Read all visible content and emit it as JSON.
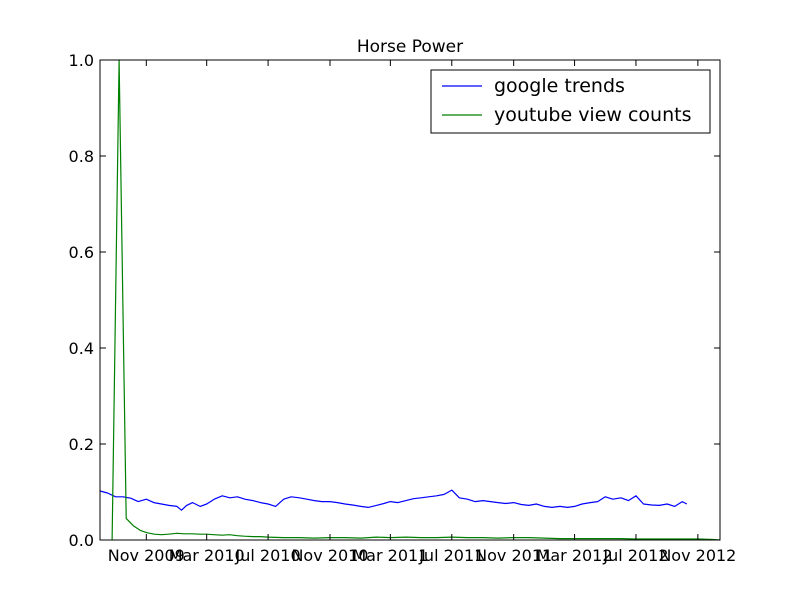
{
  "chart_data": {
    "type": "line",
    "title": "Horse Power",
    "xlabel": "",
    "ylabel": "",
    "xlim": [
      "2009-08-01",
      "2012-12-15"
    ],
    "ylim": [
      0,
      1.0
    ],
    "y_ticks": [
      "0.0",
      "0.2",
      "0.4",
      "0.6",
      "0.8",
      "1.0"
    ],
    "x_ticks": [
      {
        "date": "2009-11-01",
        "label": "Nov 2009"
      },
      {
        "date": "2010-03-01",
        "label": "Mar 2010"
      },
      {
        "date": "2010-07-01",
        "label": "Jul 2010"
      },
      {
        "date": "2010-11-01",
        "label": "Nov 2010"
      },
      {
        "date": "2011-03-01",
        "label": "Mar 2011"
      },
      {
        "date": "2011-07-01",
        "label": "Jul 2011"
      },
      {
        "date": "2011-11-01",
        "label": "Nov 2011"
      },
      {
        "date": "2012-03-01",
        "label": "Mar 2012"
      },
      {
        "date": "2012-07-01",
        "label": "Jul 2012"
      },
      {
        "date": "2012-11-01",
        "label": "Nov 2012"
      }
    ],
    "grid": false,
    "legend_position": "top-right",
    "series": [
      {
        "name": "google trends",
        "color": "#0000ff",
        "points": [
          [
            "2009-08-01",
            0.102
          ],
          [
            "2009-08-16",
            0.098
          ],
          [
            "2009-09-01",
            0.09
          ],
          [
            "2009-09-16",
            0.09
          ],
          [
            "2009-10-01",
            0.087
          ],
          [
            "2009-10-16",
            0.08
          ],
          [
            "2009-11-01",
            0.085
          ],
          [
            "2009-11-16",
            0.078
          ],
          [
            "2009-12-01",
            0.075
          ],
          [
            "2009-12-16",
            0.072
          ],
          [
            "2010-01-01",
            0.07
          ],
          [
            "2010-01-10",
            0.062
          ],
          [
            "2010-01-20",
            0.072
          ],
          [
            "2010-02-01",
            0.078
          ],
          [
            "2010-02-16",
            0.07
          ],
          [
            "2010-03-01",
            0.075
          ],
          [
            "2010-03-16",
            0.085
          ],
          [
            "2010-04-01",
            0.092
          ],
          [
            "2010-04-16",
            0.088
          ],
          [
            "2010-05-01",
            0.09
          ],
          [
            "2010-05-16",
            0.085
          ],
          [
            "2010-06-01",
            0.082
          ],
          [
            "2010-06-16",
            0.078
          ],
          [
            "2010-07-01",
            0.075
          ],
          [
            "2010-07-16",
            0.07
          ],
          [
            "2010-08-01",
            0.085
          ],
          [
            "2010-08-16",
            0.09
          ],
          [
            "2010-09-01",
            0.088
          ],
          [
            "2010-09-16",
            0.085
          ],
          [
            "2010-10-01",
            0.082
          ],
          [
            "2010-10-16",
            0.08
          ],
          [
            "2010-11-01",
            0.08
          ],
          [
            "2010-11-16",
            0.078
          ],
          [
            "2010-12-01",
            0.075
          ],
          [
            "2010-12-16",
            0.073
          ],
          [
            "2011-01-01",
            0.07
          ],
          [
            "2011-01-16",
            0.068
          ],
          [
            "2011-02-01",
            0.072
          ],
          [
            "2011-02-16",
            0.076
          ],
          [
            "2011-03-01",
            0.08
          ],
          [
            "2011-03-16",
            0.078
          ],
          [
            "2011-04-01",
            0.082
          ],
          [
            "2011-04-16",
            0.086
          ],
          [
            "2011-05-01",
            0.088
          ],
          [
            "2011-05-16",
            0.09
          ],
          [
            "2011-06-01",
            0.092
          ],
          [
            "2011-06-16",
            0.095
          ],
          [
            "2011-07-01",
            0.104
          ],
          [
            "2011-07-16",
            0.088
          ],
          [
            "2011-08-01",
            0.085
          ],
          [
            "2011-08-16",
            0.08
          ],
          [
            "2011-09-01",
            0.082
          ],
          [
            "2011-09-16",
            0.08
          ],
          [
            "2011-10-01",
            0.078
          ],
          [
            "2011-10-16",
            0.076
          ],
          [
            "2011-11-01",
            0.078
          ],
          [
            "2011-11-16",
            0.074
          ],
          [
            "2011-12-01",
            0.072
          ],
          [
            "2011-12-16",
            0.075
          ],
          [
            "2012-01-01",
            0.07
          ],
          [
            "2012-01-16",
            0.068
          ],
          [
            "2012-02-01",
            0.07
          ],
          [
            "2012-02-16",
            0.068
          ],
          [
            "2012-03-01",
            0.07
          ],
          [
            "2012-03-16",
            0.075
          ],
          [
            "2012-04-01",
            0.078
          ],
          [
            "2012-04-16",
            0.08
          ],
          [
            "2012-05-01",
            0.09
          ],
          [
            "2012-05-16",
            0.085
          ],
          [
            "2012-06-01",
            0.088
          ],
          [
            "2012-06-16",
            0.082
          ],
          [
            "2012-07-01",
            0.092
          ],
          [
            "2012-07-16",
            0.075
          ],
          [
            "2012-08-01",
            0.073
          ],
          [
            "2012-08-16",
            0.072
          ],
          [
            "2012-09-01",
            0.075
          ],
          [
            "2012-09-16",
            0.07
          ],
          [
            "2012-10-01",
            0.08
          ],
          [
            "2012-10-10",
            0.075
          ]
        ]
      },
      {
        "name": "youtube view counts",
        "color": "#008000",
        "points": [
          [
            "2009-08-25",
            0.0
          ],
          [
            "2009-09-08",
            1.0
          ],
          [
            "2009-09-22",
            0.045
          ],
          [
            "2009-10-06",
            0.03
          ],
          [
            "2009-10-20",
            0.02
          ],
          [
            "2009-11-03",
            0.015
          ],
          [
            "2009-11-17",
            0.012
          ],
          [
            "2009-12-01",
            0.011
          ],
          [
            "2009-12-15",
            0.012
          ],
          [
            "2010-01-01",
            0.014
          ],
          [
            "2010-01-15",
            0.013
          ],
          [
            "2010-02-01",
            0.013
          ],
          [
            "2010-02-15",
            0.012
          ],
          [
            "2010-03-01",
            0.012
          ],
          [
            "2010-03-15",
            0.011
          ],
          [
            "2010-04-01",
            0.01
          ],
          [
            "2010-04-15",
            0.011
          ],
          [
            "2010-05-01",
            0.009
          ],
          [
            "2010-05-15",
            0.008
          ],
          [
            "2010-06-01",
            0.007
          ],
          [
            "2010-06-15",
            0.007
          ],
          [
            "2010-07-01",
            0.006
          ],
          [
            "2010-08-01",
            0.005
          ],
          [
            "2010-09-01",
            0.005
          ],
          [
            "2010-10-01",
            0.004
          ],
          [
            "2010-11-01",
            0.005
          ],
          [
            "2010-12-01",
            0.005
          ],
          [
            "2011-01-01",
            0.004
          ],
          [
            "2011-02-01",
            0.006
          ],
          [
            "2011-03-01",
            0.005
          ],
          [
            "2011-04-01",
            0.006
          ],
          [
            "2011-05-01",
            0.005
          ],
          [
            "2011-06-01",
            0.005
          ],
          [
            "2011-07-01",
            0.006
          ],
          [
            "2011-08-01",
            0.005
          ],
          [
            "2011-09-01",
            0.005
          ],
          [
            "2011-10-01",
            0.004
          ],
          [
            "2011-11-01",
            0.005
          ],
          [
            "2011-12-01",
            0.005
          ],
          [
            "2012-01-01",
            0.004
          ],
          [
            "2012-02-01",
            0.003
          ],
          [
            "2012-03-01",
            0.003
          ],
          [
            "2012-04-01",
            0.003
          ],
          [
            "2012-05-01",
            0.003
          ],
          [
            "2012-06-01",
            0.003
          ],
          [
            "2012-07-01",
            0.002
          ],
          [
            "2012-08-01",
            0.002
          ],
          [
            "2012-09-01",
            0.002
          ],
          [
            "2012-10-01",
            0.002
          ],
          [
            "2012-11-01",
            0.002
          ],
          [
            "2012-12-01",
            0.001
          ],
          [
            "2012-12-15",
            0.0
          ]
        ]
      }
    ]
  }
}
